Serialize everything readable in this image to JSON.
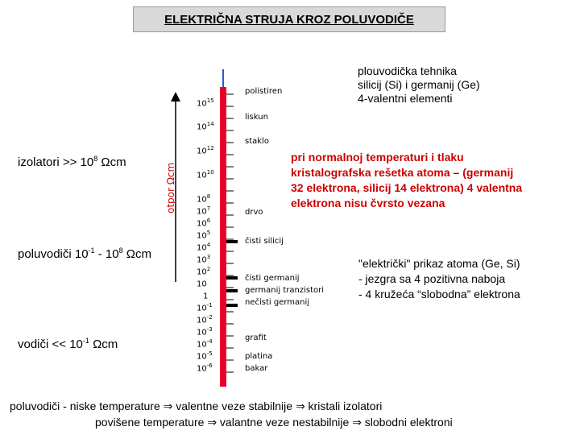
{
  "title": "ELEKTRIČNA STRUJA KROZ POLUVODIČE",
  "top_right": [
    "plouvodička tehnika",
    "silicij (Si) i germanij (Ge)",
    "4-valentni elementi"
  ],
  "left_labels": {
    "izolatori": "izolatori >> 10",
    "izolatori_exp": "8",
    "izolatori_unit": " Ωcm",
    "poluvodici": "poluvodiči 10",
    "poluvodici_exp1": "-1",
    "poluvodici_mid": " - 10",
    "poluvodici_exp2": "8",
    "poluvodici_unit": " Ωcm",
    "vodici": "vodiči  << 10",
    "vodici_exp": "-1",
    "vodici_unit": " Ωcm"
  },
  "axis_label": "otpor Ωcm",
  "scale": {
    "ticks": [
      {
        "base": "10",
        "exp": "15"
      },
      {
        "base": "10",
        "exp": "14"
      },
      {
        "base": "10",
        "exp": "12"
      },
      {
        "base": "10",
        "exp": "10"
      },
      {
        "base": "10",
        "exp": "8"
      },
      {
        "base": "10",
        "exp": "7"
      },
      {
        "base": "10",
        "exp": "6"
      },
      {
        "base": "10",
        "exp": "5"
      },
      {
        "base": "10",
        "exp": "4"
      },
      {
        "base": "10",
        "exp": "3"
      },
      {
        "base": "10",
        "exp": "2"
      },
      {
        "base": "10",
        "exp": ""
      },
      {
        "base": "1",
        "exp": ""
      },
      {
        "base": "10",
        "exp": "-1"
      },
      {
        "base": "10",
        "exp": "-2"
      },
      {
        "base": "10",
        "exp": "-3"
      },
      {
        "base": "10",
        "exp": "-4"
      },
      {
        "base": "10",
        "exp": "-5"
      },
      {
        "base": "10",
        "exp": "-6"
      }
    ],
    "materials": [
      "polistiren",
      "liskun",
      "staklo",
      "drvo",
      "čisti silicij",
      "čisti germanij",
      "germanij tranzistori",
      "nečisti germanij",
      "grafit",
      "platina",
      "bakar"
    ]
  },
  "red_text": [
    "pri normalnoj temperaturi i tlaku",
    "kristalografska rešetka atoma – (germanij",
    "32 elektrona, silicij 14 elektrona) 4 valentna",
    "elektrona nisu čvrsto vezana"
  ],
  "atom_text": [
    "\"električki\" prikaz atoma (Ge, Si)",
    "- jezgra sa 4 pozitivna naboja",
    "- 4 kružeća “slobodna” elektrona"
  ],
  "bottom": {
    "line1_a": "poluvodiči  -  niske temperature ",
    "line1_b": " valentne veze stabilnije ",
    "line1_c": " kristali izolatori",
    "line2_a": "povišene temperature ",
    "line2_b": " valantne veze nestabilnije ",
    "line2_c": " slobodni elektroni",
    "arrow": "⇒"
  },
  "colors": {
    "red": "#cc0000",
    "bar": "#e8002a",
    "title_bg": "#d9d9d9"
  }
}
